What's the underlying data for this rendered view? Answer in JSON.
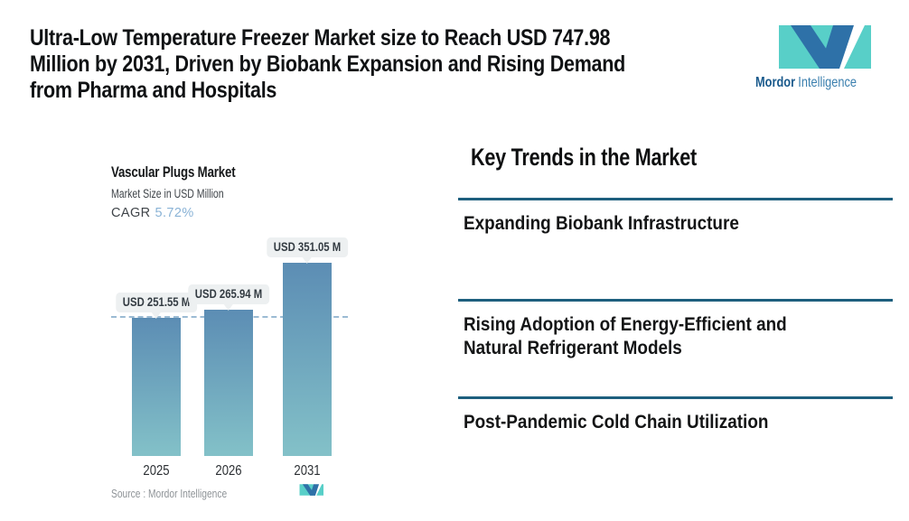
{
  "header": {
    "title": "Ultra-Low Temperature Freezer Market size to Reach USD 747.98 Million by 2031, Driven by Biobank Expansion and Rising Demand from Pharma and Hospitals",
    "title_lines": [
      "Ultra-Low Temperature Freezer Market size to Reach USD 747.98",
      "Million by 2031, Driven by Biobank Expansion and Rising Demand",
      "from Pharma and Hospitals"
    ]
  },
  "brand": {
    "wordmark_bold": "Mordor",
    "wordmark_light": "Intelligence"
  },
  "chart": {
    "title": "Vascular Plugs Market",
    "subtitle": "Market Size in USD Million",
    "cagr_label": "CAGR",
    "cagr_value": "5.72%",
    "source": "Source :  Mordor Intelligence"
  },
  "chart_data": {
    "type": "bar",
    "title": "Vascular Plugs Market",
    "subtitle": "Market Size in USD Million",
    "cagr": "5.72%",
    "unit": "USD Million",
    "categories": [
      "2025",
      "2026",
      "2031"
    ],
    "values": [
      251.55,
      265.94,
      351.05
    ],
    "value_labels": [
      "USD 251.55 M",
      "USD 265.94 M",
      "USD 351.05 M"
    ],
    "reference_line": 251.55,
    "ylim": [
      0,
      380
    ],
    "grid": false,
    "legend": false
  },
  "trends": {
    "heading": "Key Trends in the Market",
    "items": [
      {
        "text": "Expanding Biobank Infrastructure",
        "lines": [
          "Expanding Biobank Infrastructure"
        ]
      },
      {
        "text": "Rising Adoption of Energy-Efficient and Natural Refrigerant Models",
        "lines": [
          "Rising Adoption of Energy-Efficient and",
          "Natural Refrigerant Models"
        ]
      },
      {
        "text": "Post-Pandemic Cold Chain Utilization",
        "lines": [
          "Post-Pandemic Cold Chain Utilization"
        ]
      }
    ]
  },
  "theme": {
    "divider_color": "#1e5f7e",
    "bar_gradient_top": "#5c8db4",
    "bar_gradient_bottom": "#83c1c8",
    "dashed_line_color": "#9bbbd3",
    "tooltip_bg": "#edf0f1",
    "cagr_value_color": "#8ab3d6",
    "brand_teal": "#58cfc8",
    "brand_blue": "#2e71a8",
    "wordmark_bold_color": "#1a5a8c",
    "wordmark_light_color": "#3a7fae"
  }
}
